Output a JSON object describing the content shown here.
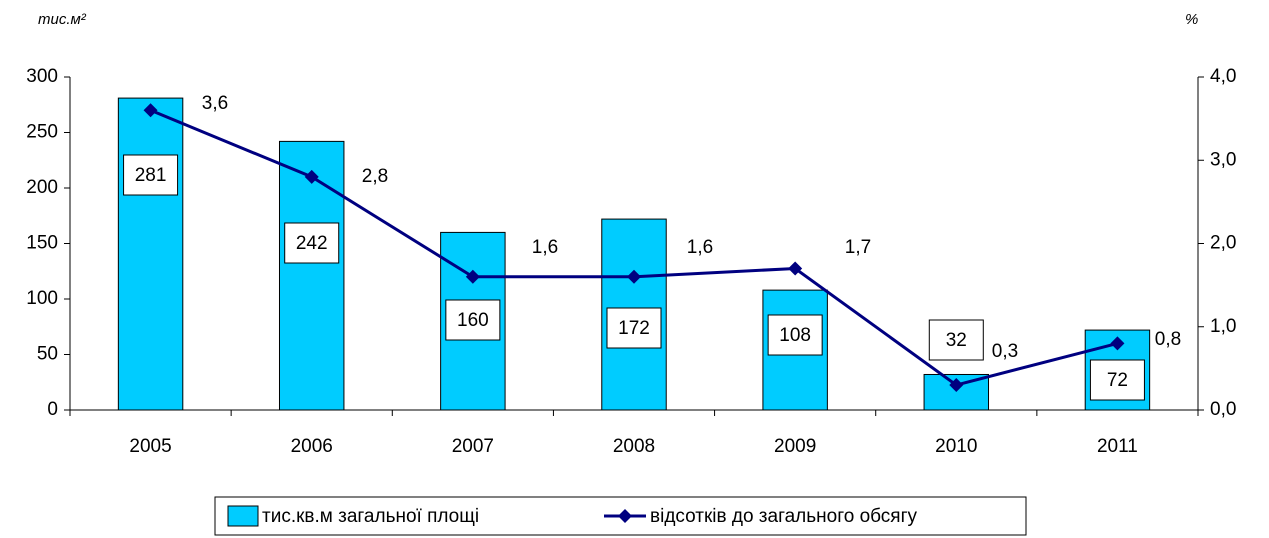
{
  "chart_data": {
    "type": "bar-line",
    "ylabel": "тис.м²",
    "y2label": "%",
    "categories": [
      "2005",
      "2006",
      "2007",
      "2008",
      "2009",
      "2010",
      "2011"
    ],
    "series": [
      {
        "name": "тис.кв.м загальної  площі",
        "type": "bar",
        "color": "#00ccff",
        "values": [
          281,
          242,
          160,
          172,
          108,
          32,
          72
        ]
      },
      {
        "name": "відсотків до загального обсягу",
        "type": "line",
        "color": "#000080",
        "axis": "y2",
        "values": [
          3.6,
          2.8,
          1.6,
          1.6,
          1.7,
          0.3,
          0.8
        ],
        "value_labels": [
          "3,6",
          "2,8",
          "1,6",
          "1,6",
          "1,7",
          "0,3",
          "0,8"
        ]
      }
    ],
    "ylim": [
      0,
      300
    ],
    "yticks": [
      0,
      50,
      100,
      150,
      200,
      250,
      300
    ],
    "y2lim": [
      0,
      4
    ],
    "y2ticks": [
      {
        "value": 0,
        "label": "0,0"
      },
      {
        "value": 1,
        "label": "1,0"
      },
      {
        "value": 2,
        "label": "2,0"
      },
      {
        "value": 3,
        "label": "3,0"
      },
      {
        "value": 4,
        "label": "4,0"
      }
    ],
    "legend": "bottom"
  }
}
